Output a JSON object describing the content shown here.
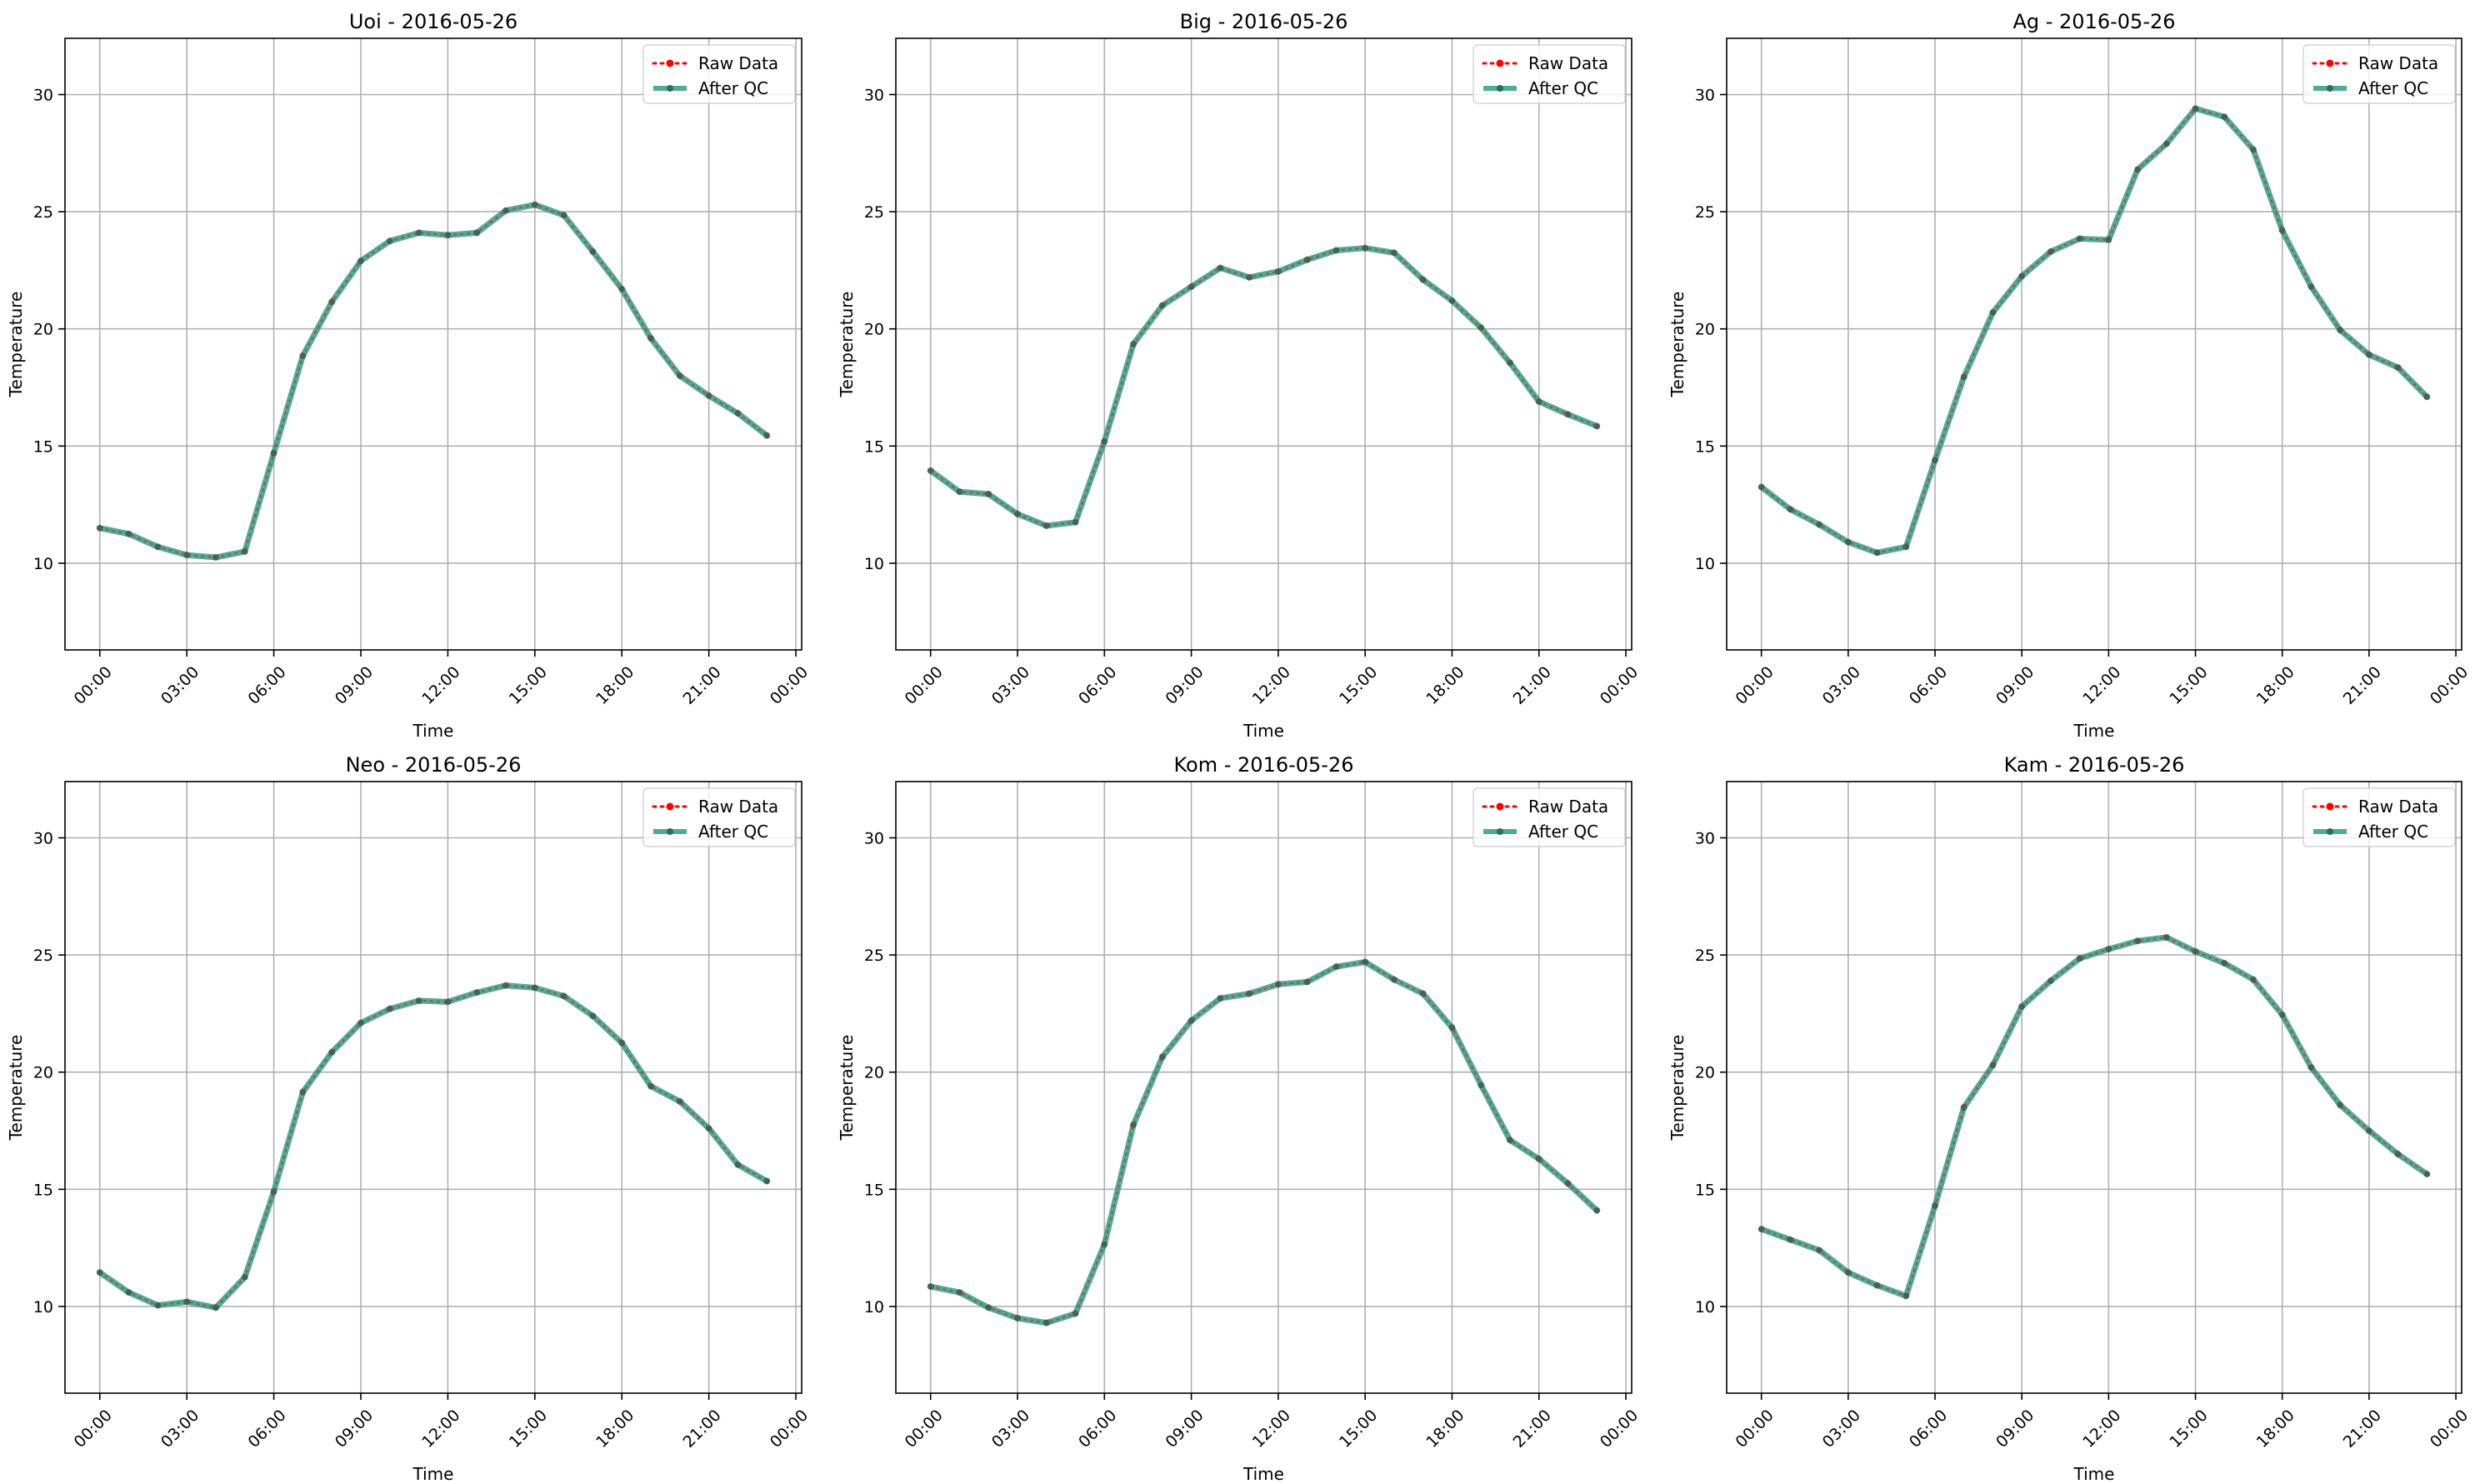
{
  "figure": {
    "colors": {
      "raw": "#ff0000",
      "qc": "#2e9e83",
      "qc_marker": "#2a6e5c"
    },
    "legend": {
      "raw": "Raw Data",
      "qc": "After QC",
      "placement": "top-right"
    }
  },
  "chart_data": [
    {
      "type": "line",
      "title": "Uoi - 2016-05-26",
      "xlabel": "Time",
      "ylabel": "Temperature",
      "xticks": [
        "00:00",
        "03:00",
        "06:00",
        "09:00",
        "12:00",
        "15:00",
        "18:00",
        "21:00",
        "00:00"
      ],
      "yticks": [
        10,
        15,
        20,
        25,
        30
      ],
      "ylim": [
        6.3,
        32.4
      ],
      "xlim_hours": [
        -1.2,
        24.2
      ],
      "grid": true,
      "x_hours": [
        0,
        1,
        2,
        3,
        4,
        5,
        6,
        7,
        8,
        9,
        10,
        11,
        12,
        13,
        14,
        15,
        16,
        17,
        18,
        19,
        20,
        21,
        22,
        23
      ],
      "series": [
        {
          "name": "Raw Data",
          "values": [
            11.5,
            11.25,
            10.7,
            10.35,
            10.25,
            10.5,
            14.7,
            18.85,
            21.15,
            22.9,
            23.75,
            24.1,
            24.0,
            24.1,
            25.05,
            25.3,
            24.85,
            23.3,
            21.7,
            19.6,
            18.0,
            17.15,
            16.4,
            15.45
          ]
        },
        {
          "name": "After QC",
          "values": [
            11.5,
            11.25,
            10.7,
            10.35,
            10.25,
            10.5,
            14.7,
            18.85,
            21.15,
            22.9,
            23.75,
            24.1,
            24.0,
            24.1,
            25.05,
            25.3,
            24.85,
            23.3,
            21.7,
            19.6,
            18.0,
            17.15,
            16.4,
            15.45
          ]
        }
      ]
    },
    {
      "type": "line",
      "title": "Big - 2016-05-26",
      "xlabel": "Time",
      "ylabel": "Temperature",
      "xticks": [
        "00:00",
        "03:00",
        "06:00",
        "09:00",
        "12:00",
        "15:00",
        "18:00",
        "21:00",
        "00:00"
      ],
      "yticks": [
        10,
        15,
        20,
        25,
        30
      ],
      "ylim": [
        6.3,
        32.4
      ],
      "xlim_hours": [
        -1.2,
        24.2
      ],
      "grid": true,
      "x_hours": [
        0,
        1,
        2,
        3,
        4,
        5,
        6,
        7,
        8,
        9,
        10,
        11,
        12,
        13,
        14,
        15,
        16,
        17,
        18,
        19,
        20,
        21,
        22,
        23
      ],
      "series": [
        {
          "name": "Raw Data",
          "values": [
            13.95,
            13.05,
            12.95,
            12.1,
            11.6,
            11.75,
            15.2,
            19.35,
            21.0,
            21.8,
            22.6,
            22.2,
            22.45,
            22.95,
            23.35,
            23.45,
            23.25,
            22.1,
            21.2,
            20.05,
            18.55,
            16.9,
            16.35,
            15.85
          ]
        },
        {
          "name": "After QC",
          "values": [
            13.95,
            13.05,
            12.95,
            12.1,
            11.6,
            11.75,
            15.2,
            19.35,
            21.0,
            21.8,
            22.6,
            22.2,
            22.45,
            22.95,
            23.35,
            23.45,
            23.25,
            22.1,
            21.2,
            20.05,
            18.55,
            16.9,
            16.35,
            15.85
          ]
        }
      ]
    },
    {
      "type": "line",
      "title": "Ag - 2016-05-26",
      "xlabel": "Time",
      "ylabel": "Temperature",
      "xticks": [
        "00:00",
        "03:00",
        "06:00",
        "09:00",
        "12:00",
        "15:00",
        "18:00",
        "21:00",
        "00:00"
      ],
      "yticks": [
        10,
        15,
        20,
        25,
        30
      ],
      "ylim": [
        6.3,
        32.4
      ],
      "xlim_hours": [
        -1.2,
        24.2
      ],
      "grid": true,
      "x_hours": [
        0,
        1,
        2,
        3,
        4,
        5,
        6,
        7,
        8,
        9,
        10,
        11,
        12,
        13,
        14,
        15,
        16,
        17,
        18,
        19,
        20,
        21,
        22,
        23
      ],
      "series": [
        {
          "name": "Raw Data",
          "values": [
            13.25,
            12.3,
            11.65,
            10.9,
            10.45,
            10.7,
            14.4,
            17.95,
            20.7,
            22.25,
            23.3,
            23.85,
            23.8,
            26.8,
            27.9,
            29.4,
            29.05,
            27.65,
            24.2,
            21.8,
            19.95,
            18.9,
            18.35,
            17.1
          ]
        },
        {
          "name": "After QC",
          "values": [
            13.25,
            12.3,
            11.65,
            10.9,
            10.45,
            10.7,
            14.4,
            17.95,
            20.7,
            22.25,
            23.3,
            23.85,
            23.8,
            26.8,
            27.9,
            29.4,
            29.05,
            27.65,
            24.2,
            21.8,
            19.95,
            18.9,
            18.35,
            17.1
          ]
        }
      ]
    },
    {
      "type": "line",
      "title": "Neo - 2016-05-26",
      "xlabel": "Time",
      "ylabel": "Temperature",
      "xticks": [
        "00:00",
        "03:00",
        "06:00",
        "09:00",
        "12:00",
        "15:00",
        "18:00",
        "21:00",
        "00:00"
      ],
      "yticks": [
        10,
        15,
        20,
        25,
        30
      ],
      "ylim": [
        6.3,
        32.4
      ],
      "xlim_hours": [
        -1.2,
        24.2
      ],
      "grid": true,
      "x_hours": [
        0,
        1,
        2,
        3,
        4,
        5,
        6,
        7,
        8,
        9,
        10,
        11,
        12,
        13,
        14,
        15,
        16,
        17,
        18,
        19,
        20,
        21,
        22,
        23
      ],
      "series": [
        {
          "name": "Raw Data",
          "values": [
            11.45,
            10.6,
            10.05,
            10.2,
            9.95,
            11.25,
            14.9,
            19.15,
            20.85,
            22.1,
            22.7,
            23.05,
            23.0,
            23.4,
            23.7,
            23.6,
            23.25,
            22.4,
            21.25,
            19.4,
            18.75,
            17.6,
            16.05,
            15.35
          ]
        },
        {
          "name": "After QC",
          "values": [
            11.45,
            10.6,
            10.05,
            10.2,
            9.95,
            11.25,
            14.9,
            19.15,
            20.85,
            22.1,
            22.7,
            23.05,
            23.0,
            23.4,
            23.7,
            23.6,
            23.25,
            22.4,
            21.25,
            19.4,
            18.75,
            17.6,
            16.05,
            15.35
          ]
        }
      ]
    },
    {
      "type": "line",
      "title": "Kom - 2016-05-26",
      "xlabel": "Time",
      "ylabel": "Temperature",
      "xticks": [
        "00:00",
        "03:00",
        "06:00",
        "09:00",
        "12:00",
        "15:00",
        "18:00",
        "21:00",
        "00:00"
      ],
      "yticks": [
        10,
        15,
        20,
        25,
        30
      ],
      "ylim": [
        6.3,
        32.4
      ],
      "xlim_hours": [
        -1.2,
        24.2
      ],
      "grid": true,
      "x_hours": [
        0,
        1,
        2,
        3,
        4,
        5,
        6,
        7,
        8,
        9,
        10,
        11,
        12,
        13,
        14,
        15,
        16,
        17,
        18,
        19,
        20,
        21,
        22,
        23
      ],
      "series": [
        {
          "name": "Raw Data",
          "values": [
            10.85,
            10.6,
            9.95,
            9.5,
            9.3,
            9.7,
            12.65,
            17.75,
            20.65,
            22.2,
            23.15,
            23.35,
            23.75,
            23.85,
            24.5,
            24.7,
            23.95,
            23.35,
            21.9,
            19.45,
            17.1,
            16.3,
            15.25,
            14.1
          ]
        },
        {
          "name": "After QC",
          "values": [
            10.85,
            10.6,
            9.95,
            9.5,
            9.3,
            9.7,
            12.65,
            17.75,
            20.65,
            22.2,
            23.15,
            23.35,
            23.75,
            23.85,
            24.5,
            24.7,
            23.95,
            23.35,
            21.9,
            19.45,
            17.1,
            16.3,
            15.25,
            14.1
          ]
        }
      ]
    },
    {
      "type": "line",
      "title": "Kam - 2016-05-26",
      "xlabel": "Time",
      "ylabel": "Temperature",
      "xticks": [
        "00:00",
        "03:00",
        "06:00",
        "09:00",
        "12:00",
        "15:00",
        "18:00",
        "21:00",
        "00:00"
      ],
      "yticks": [
        10,
        15,
        20,
        25,
        30
      ],
      "ylim": [
        6.3,
        32.4
      ],
      "xlim_hours": [
        -1.2,
        24.2
      ],
      "grid": true,
      "x_hours": [
        0,
        1,
        2,
        3,
        4,
        5,
        6,
        7,
        8,
        9,
        10,
        11,
        12,
        13,
        14,
        15,
        16,
        17,
        18,
        19,
        20,
        21,
        22,
        23
      ],
      "series": [
        {
          "name": "Raw Data",
          "values": [
            13.3,
            12.85,
            12.4,
            11.45,
            10.9,
            10.45,
            14.3,
            18.5,
            20.3,
            22.8,
            23.9,
            24.85,
            25.25,
            25.6,
            25.75,
            25.15,
            24.65,
            23.95,
            22.45,
            20.2,
            18.6,
            17.5,
            16.5,
            15.65
          ]
        },
        {
          "name": "After QC",
          "values": [
            13.3,
            12.85,
            12.4,
            11.45,
            10.9,
            10.45,
            14.3,
            18.5,
            20.3,
            22.8,
            23.9,
            24.85,
            25.25,
            25.6,
            25.75,
            25.15,
            24.65,
            23.95,
            22.45,
            20.2,
            18.6,
            17.5,
            16.5,
            15.65
          ]
        }
      ]
    }
  ]
}
